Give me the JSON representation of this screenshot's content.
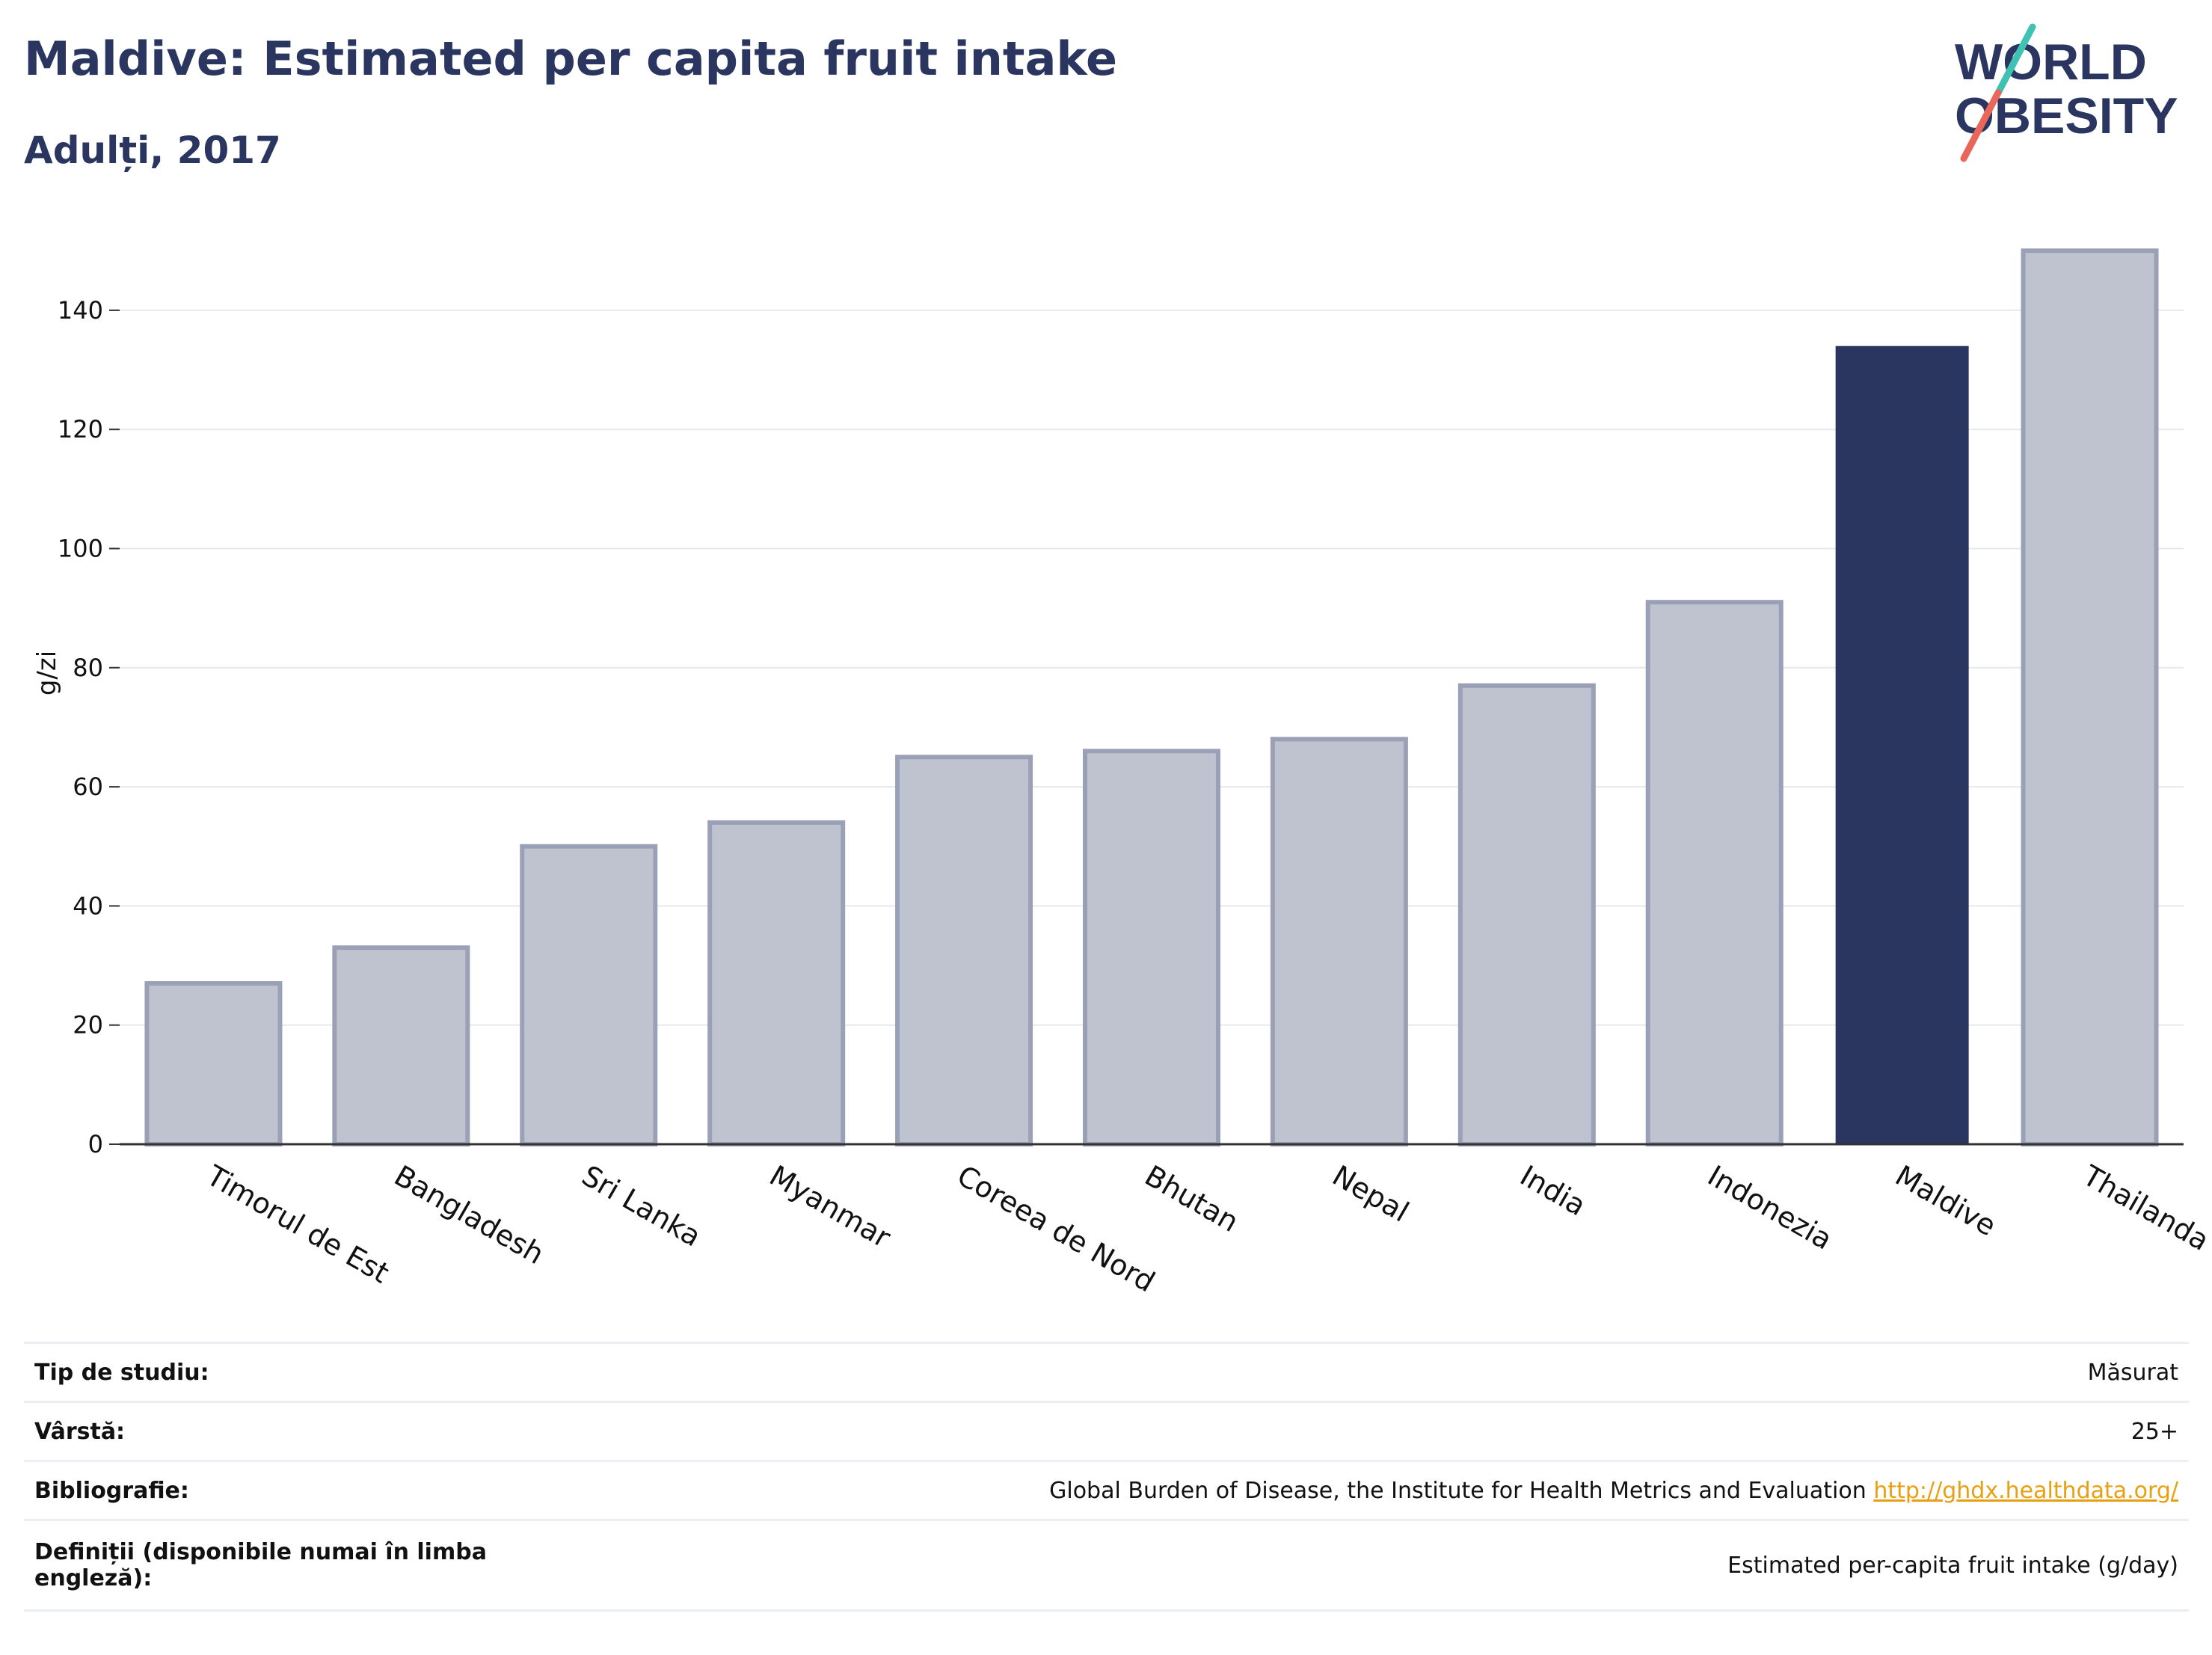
{
  "header": {
    "title": "Maldive: Estimated per capita fruit intake",
    "subtitle": "Adulți, 2017"
  },
  "logo": {
    "line1": "WORLD",
    "line2": "OBESITY"
  },
  "colors": {
    "highlight": "#2a3560",
    "bar": "#bfc3cf",
    "bar_border": "#9aa0b5",
    "text": "#2a3560",
    "slash_teal": "#3fc1b3",
    "slash_red": "#e8675a",
    "link": "#e8a013"
  },
  "chart_data": {
    "type": "bar",
    "categories": [
      "Timorul de Est",
      "Bangladesh",
      "Sri Lanka",
      "Myanmar",
      "Coreea de Nord",
      "Bhutan",
      "Nepal",
      "India",
      "Indonezia",
      "Maldive",
      "Thailanda"
    ],
    "values": [
      27,
      33,
      50,
      54,
      65,
      66,
      68,
      77,
      91,
      134,
      150
    ],
    "highlight": "Maldive",
    "ylabel": "g/zi",
    "xlabel": "",
    "ylim": [
      0,
      155
    ],
    "yticks": [
      0,
      20,
      40,
      60,
      80,
      100,
      120,
      140
    ],
    "grid": true
  },
  "details": [
    {
      "label": "Tip de studiu:",
      "value": "Măsurat"
    },
    {
      "label": "Vârstă:",
      "value": "25+"
    },
    {
      "label": "Bibliografie:",
      "value": "Global Burden of Disease, the Institute for Health Metrics and Evaluation",
      "link": "http://ghdx.healthdata.org/"
    },
    {
      "label": "Definiții (disponibile numai în limba engleză):",
      "value": "Estimated per-capita fruit intake (g/day)"
    }
  ]
}
